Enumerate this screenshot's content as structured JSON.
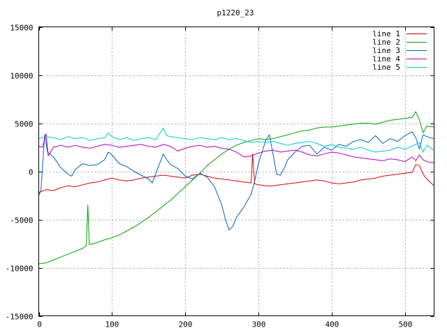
{
  "chart_data": {
    "type": "line",
    "title": "p1220_23",
    "xlabel": "",
    "ylabel": "",
    "xlim": [
      0,
      540
    ],
    "ylim": [
      -15000,
      15000
    ],
    "x_ticks": [
      0,
      100,
      200,
      300,
      400,
      500
    ],
    "y_ticks": [
      -15000,
      -10000,
      -5000,
      0,
      5000,
      10000,
      15000
    ],
    "grid": true,
    "legend_position": "top-right",
    "series": [
      {
        "name": "line 1",
        "color": "#d00000",
        "points": [
          [
            0,
            -2200
          ],
          [
            10,
            -1900
          ],
          [
            20,
            -2000
          ],
          [
            30,
            -1700
          ],
          [
            40,
            -1500
          ],
          [
            50,
            -1600
          ],
          [
            60,
            -1400
          ],
          [
            70,
            -1200
          ],
          [
            80,
            -1100
          ],
          [
            90,
            -900
          ],
          [
            100,
            -700
          ],
          [
            110,
            -900
          ],
          [
            120,
            -1000
          ],
          [
            130,
            -900
          ],
          [
            140,
            -700
          ],
          [
            150,
            -600
          ],
          [
            160,
            -500
          ],
          [
            170,
            -400
          ],
          [
            180,
            -500
          ],
          [
            190,
            -600
          ],
          [
            200,
            -700
          ],
          [
            210,
            -400
          ],
          [
            220,
            -300
          ],
          [
            230,
            -500
          ],
          [
            240,
            -700
          ],
          [
            250,
            -800
          ],
          [
            260,
            -900
          ],
          [
            270,
            -1000
          ],
          [
            280,
            -1100
          ],
          [
            290,
            -1200
          ],
          [
            292,
            1800
          ],
          [
            295,
            -1300
          ],
          [
            300,
            -1400
          ],
          [
            310,
            -1500
          ],
          [
            320,
            -1500
          ],
          [
            330,
            -1400
          ],
          [
            340,
            -1300
          ],
          [
            350,
            -1200
          ],
          [
            360,
            -1100
          ],
          [
            370,
            -1000
          ],
          [
            380,
            -900
          ],
          [
            390,
            -1000
          ],
          [
            400,
            -1200
          ],
          [
            410,
            -1300
          ],
          [
            420,
            -1200
          ],
          [
            430,
            -1100
          ],
          [
            440,
            -900
          ],
          [
            450,
            -800
          ],
          [
            460,
            -700
          ],
          [
            470,
            -500
          ],
          [
            480,
            -400
          ],
          [
            490,
            -300
          ],
          [
            500,
            -200
          ],
          [
            510,
            -100
          ],
          [
            515,
            700
          ],
          [
            520,
            600
          ],
          [
            525,
            -300
          ],
          [
            530,
            -800
          ],
          [
            540,
            -1500
          ]
        ]
      },
      {
        "name": "line 2",
        "color": "#00a000",
        "points": [
          [
            0,
            -9600
          ],
          [
            10,
            -9500
          ],
          [
            20,
            -9200
          ],
          [
            30,
            -8900
          ],
          [
            40,
            -8600
          ],
          [
            50,
            -8300
          ],
          [
            60,
            -8000
          ],
          [
            65,
            -7700
          ],
          [
            67,
            -3500
          ],
          [
            69,
            -7600
          ],
          [
            80,
            -7400
          ],
          [
            90,
            -7100
          ],
          [
            100,
            -6900
          ],
          [
            110,
            -6600
          ],
          [
            120,
            -6200
          ],
          [
            130,
            -5800
          ],
          [
            140,
            -5300
          ],
          [
            150,
            -4800
          ],
          [
            160,
            -4200
          ],
          [
            170,
            -3600
          ],
          [
            180,
            -3000
          ],
          [
            190,
            -2300
          ],
          [
            200,
            -1600
          ],
          [
            210,
            -900
          ],
          [
            220,
            -200
          ],
          [
            230,
            600
          ],
          [
            240,
            1200
          ],
          [
            250,
            1800
          ],
          [
            260,
            2300
          ],
          [
            270,
            2700
          ],
          [
            280,
            3000
          ],
          [
            290,
            3200
          ],
          [
            300,
            3400
          ],
          [
            310,
            3300
          ],
          [
            320,
            3400
          ],
          [
            330,
            3600
          ],
          [
            340,
            3800
          ],
          [
            350,
            4000
          ],
          [
            360,
            4200
          ],
          [
            370,
            4300
          ],
          [
            380,
            4500
          ],
          [
            390,
            4600
          ],
          [
            400,
            4600
          ],
          [
            410,
            4700
          ],
          [
            420,
            4800
          ],
          [
            430,
            4900
          ],
          [
            440,
            5000
          ],
          [
            450,
            5000
          ],
          [
            460,
            4900
          ],
          [
            470,
            5100
          ],
          [
            480,
            5300
          ],
          [
            490,
            5400
          ],
          [
            500,
            5500
          ],
          [
            510,
            5600
          ],
          [
            515,
            6200
          ],
          [
            520,
            5300
          ],
          [
            525,
            4000
          ],
          [
            530,
            4700
          ],
          [
            540,
            4600
          ]
        ]
      },
      {
        "name": "line 3",
        "color": "#0060c0",
        "points": [
          [
            0,
            -2500
          ],
          [
            3,
            -2000
          ],
          [
            8,
            3800
          ],
          [
            12,
            2000
          ],
          [
            20,
            1500
          ],
          [
            30,
            400
          ],
          [
            40,
            -300
          ],
          [
            45,
            -500
          ],
          [
            50,
            200
          ],
          [
            60,
            800
          ],
          [
            70,
            600
          ],
          [
            80,
            700
          ],
          [
            90,
            1200
          ],
          [
            95,
            2000
          ],
          [
            100,
            1700
          ],
          [
            110,
            800
          ],
          [
            120,
            500
          ],
          [
            130,
            0
          ],
          [
            140,
            -400
          ],
          [
            150,
            -800
          ],
          [
            155,
            -1200
          ],
          [
            160,
            -200
          ],
          [
            170,
            1800
          ],
          [
            175,
            1200
          ],
          [
            180,
            700
          ],
          [
            190,
            300
          ],
          [
            200,
            -500
          ],
          [
            210,
            -800
          ],
          [
            220,
            -200
          ],
          [
            230,
            -600
          ],
          [
            240,
            -1600
          ],
          [
            250,
            -3500
          ],
          [
            255,
            -5000
          ],
          [
            260,
            -6100
          ],
          [
            265,
            -5700
          ],
          [
            270,
            -4800
          ],
          [
            280,
            -3700
          ],
          [
            290,
            -2400
          ],
          [
            295,
            -1000
          ],
          [
            300,
            800
          ],
          [
            305,
            2000
          ],
          [
            310,
            3200
          ],
          [
            315,
            3800
          ],
          [
            320,
            1800
          ],
          [
            325,
            -300
          ],
          [
            330,
            -400
          ],
          [
            335,
            300
          ],
          [
            340,
            1200
          ],
          [
            350,
            2000
          ],
          [
            360,
            2600
          ],
          [
            370,
            2700
          ],
          [
            380,
            1800
          ],
          [
            390,
            2500
          ],
          [
            400,
            2200
          ],
          [
            410,
            2800
          ],
          [
            420,
            2600
          ],
          [
            430,
            3100
          ],
          [
            440,
            3300
          ],
          [
            450,
            3000
          ],
          [
            460,
            3700
          ],
          [
            470,
            2900
          ],
          [
            480,
            3400
          ],
          [
            490,
            3100
          ],
          [
            500,
            3700
          ],
          [
            510,
            4100
          ],
          [
            515,
            3500
          ],
          [
            520,
            2300
          ],
          [
            525,
            3800
          ],
          [
            530,
            3600
          ],
          [
            540,
            3400
          ]
        ]
      },
      {
        "name": "line 4",
        "color": "#b000b0",
        "points": [
          [
            0,
            2600
          ],
          [
            5,
            2500
          ],
          [
            10,
            3900
          ],
          [
            13,
            1600
          ],
          [
            20,
            2500
          ],
          [
            30,
            2700
          ],
          [
            40,
            2500
          ],
          [
            50,
            2700
          ],
          [
            60,
            2500
          ],
          [
            70,
            2400
          ],
          [
            80,
            2600
          ],
          [
            90,
            2800
          ],
          [
            100,
            2700
          ],
          [
            110,
            2500
          ],
          [
            120,
            2600
          ],
          [
            130,
            2700
          ],
          [
            140,
            2800
          ],
          [
            150,
            2600
          ],
          [
            160,
            2500
          ],
          [
            170,
            2800
          ],
          [
            180,
            2600
          ],
          [
            190,
            2100
          ],
          [
            200,
            2400
          ],
          [
            210,
            2600
          ],
          [
            220,
            2700
          ],
          [
            230,
            2500
          ],
          [
            240,
            2600
          ],
          [
            250,
            2400
          ],
          [
            260,
            2300
          ],
          [
            270,
            2000
          ],
          [
            280,
            1500
          ],
          [
            290,
            1600
          ],
          [
            300,
            1900
          ],
          [
            310,
            2100
          ],
          [
            320,
            2200
          ],
          [
            330,
            2000
          ],
          [
            340,
            2100
          ],
          [
            350,
            2200
          ],
          [
            360,
            2000
          ],
          [
            370,
            1700
          ],
          [
            380,
            1600
          ],
          [
            390,
            1800
          ],
          [
            400,
            2000
          ],
          [
            410,
            1900
          ],
          [
            420,
            1700
          ],
          [
            430,
            1500
          ],
          [
            440,
            1400
          ],
          [
            450,
            1300
          ],
          [
            460,
            1200
          ],
          [
            470,
            1100
          ],
          [
            480,
            1300
          ],
          [
            490,
            1200
          ],
          [
            500,
            1000
          ],
          [
            510,
            1500
          ],
          [
            515,
            1100
          ],
          [
            520,
            1700
          ],
          [
            525,
            1200
          ],
          [
            530,
            1000
          ],
          [
            540,
            900
          ]
        ]
      },
      {
        "name": "line 5",
        "color": "#00c8c8",
        "points": [
          [
            0,
            3400
          ],
          [
            10,
            3600
          ],
          [
            20,
            3500
          ],
          [
            30,
            3300
          ],
          [
            40,
            3600
          ],
          [
            50,
            3400
          ],
          [
            60,
            3500
          ],
          [
            70,
            3200
          ],
          [
            80,
            3400
          ],
          [
            90,
            3500
          ],
          [
            95,
            4000
          ],
          [
            100,
            3600
          ],
          [
            110,
            3300
          ],
          [
            120,
            3500
          ],
          [
            130,
            3200
          ],
          [
            140,
            3400
          ],
          [
            150,
            3500
          ],
          [
            160,
            3300
          ],
          [
            170,
            4500
          ],
          [
            175,
            3700
          ],
          [
            180,
            3600
          ],
          [
            190,
            3500
          ],
          [
            200,
            3400
          ],
          [
            210,
            3300
          ],
          [
            220,
            3500
          ],
          [
            230,
            3400
          ],
          [
            240,
            3300
          ],
          [
            250,
            3500
          ],
          [
            260,
            3300
          ],
          [
            270,
            3400
          ],
          [
            280,
            3200
          ],
          [
            290,
            3000
          ],
          [
            300,
            3100
          ],
          [
            310,
            3000
          ],
          [
            320,
            3100
          ],
          [
            330,
            2900
          ],
          [
            340,
            2700
          ],
          [
            350,
            2900
          ],
          [
            360,
            3000
          ],
          [
            370,
            3100
          ],
          [
            380,
            2900
          ],
          [
            390,
            2600
          ],
          [
            400,
            2800
          ],
          [
            410,
            2500
          ],
          [
            420,
            2400
          ],
          [
            430,
            2300
          ],
          [
            440,
            2500
          ],
          [
            450,
            2200
          ],
          [
            460,
            2000
          ],
          [
            470,
            2100
          ],
          [
            480,
            2200
          ],
          [
            490,
            2500
          ],
          [
            500,
            2300
          ],
          [
            510,
            2600
          ],
          [
            520,
            3000
          ],
          [
            525,
            2000
          ],
          [
            530,
            2700
          ],
          [
            540,
            2200
          ]
        ]
      }
    ]
  }
}
